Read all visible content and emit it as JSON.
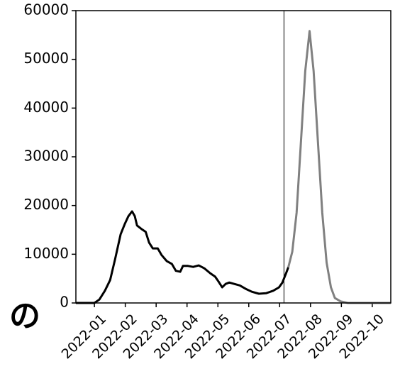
{
  "chart_data": {
    "type": "line",
    "annotation": "の",
    "xlim": [
      0.4,
      10.6
    ],
    "ylim": [
      0,
      60000
    ],
    "xticks": [
      {
        "value": 1,
        "label": "2022-01"
      },
      {
        "value": 2,
        "label": "2022-02"
      },
      {
        "value": 3,
        "label": "2022-03"
      },
      {
        "value": 4,
        "label": "2022-04"
      },
      {
        "value": 5,
        "label": "2022-05"
      },
      {
        "value": 6,
        "label": "2022-06"
      },
      {
        "value": 7,
        "label": "2022-07"
      },
      {
        "value": 8,
        "label": "2022-08"
      },
      {
        "value": 9,
        "label": "2022-09"
      },
      {
        "value": 10,
        "label": "2022-10"
      }
    ],
    "yticks": [
      0,
      10000,
      20000,
      30000,
      40000,
      50000,
      60000
    ],
    "vline": 7.14,
    "vline_color": "#000000",
    "series": [
      {
        "color": "#000000",
        "x": [
          0.4,
          1.0,
          1.16,
          1.34,
          1.51,
          1.67,
          1.85,
          1.99,
          2.1,
          2.22,
          2.31,
          2.38,
          2.54,
          2.66,
          2.77,
          2.89,
          3.05,
          3.18,
          3.34,
          3.51,
          3.64,
          3.78,
          3.87,
          4.03,
          4.2,
          4.38,
          4.56,
          4.75,
          4.91,
          5.02,
          5.14,
          5.25,
          5.37,
          5.53,
          5.71,
          5.9,
          6.1,
          6.33,
          6.56,
          6.79,
          6.98,
          7.09,
          7.21,
          7.28
        ],
        "values": [
          0,
          0,
          700,
          2500,
          4700,
          9000,
          14100,
          16300,
          17800,
          18800,
          17800,
          15900,
          15100,
          14600,
          12400,
          11200,
          11200,
          9800,
          8600,
          8000,
          6600,
          6400,
          7600,
          7600,
          7400,
          7700,
          7100,
          6100,
          5400,
          4400,
          3200,
          3900,
          4200,
          3900,
          3600,
          2900,
          2300,
          1900,
          2000,
          2500,
          3200,
          4200,
          6100,
          7300
        ]
      },
      {
        "color": "#808080",
        "x": [
          7.28,
          7.41,
          7.55,
          7.69,
          7.83,
          7.97,
          8.1,
          8.24,
          8.38,
          8.52,
          8.66,
          8.79,
          8.98,
          9.21,
          10.6
        ],
        "values": [
          7300,
          10500,
          18500,
          33000,
          47600,
          55800,
          47600,
          33000,
          18500,
          8300,
          3200,
          1000,
          300,
          0,
          0
        ]
      }
    ]
  }
}
